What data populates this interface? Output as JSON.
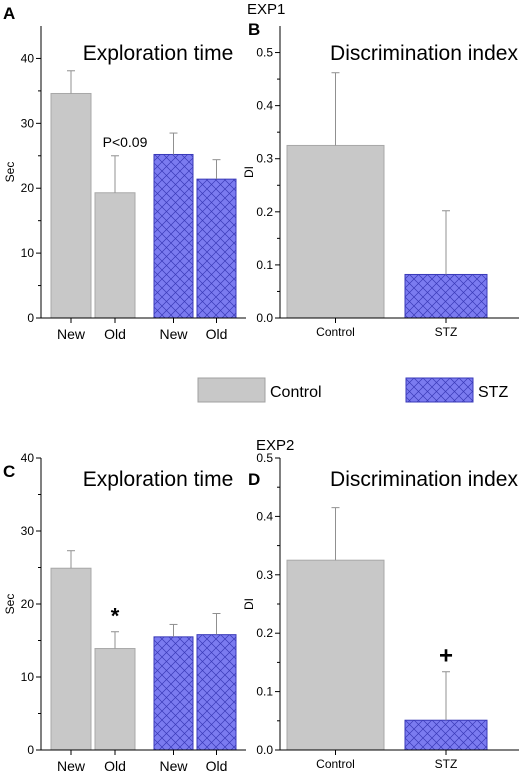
{
  "figure": {
    "exp1_label": "EXP1",
    "exp2_label": "EXP2",
    "legend": [
      {
        "label": "Control",
        "style": "solid"
      },
      {
        "label": "STZ",
        "style": "crosshatch"
      }
    ]
  },
  "colors": {
    "control": "#c8c8c8",
    "stz": "#7b7bf0",
    "hatch": "#3a3ab8",
    "error_bar": "#909090",
    "axis": "#000000"
  },
  "chart_data": [
    {
      "id": "A",
      "panel_letter": "A",
      "type": "bar",
      "title": "Exploration time",
      "ylabel": "Sec",
      "xlabel": "",
      "ylim": [
        0,
        45
      ],
      "yticks": [
        0,
        10,
        20,
        30,
        40
      ],
      "legend": "none",
      "grid": false,
      "categories": [
        "New",
        "Old",
        "New",
        "Old"
      ],
      "values": [
        34.6,
        19.3,
        25.2,
        21.4
      ],
      "errors": [
        3.5,
        5.7,
        3.3,
        3.0
      ],
      "groups": [
        "control",
        "control",
        "stz",
        "stz"
      ],
      "annotations": [
        {
          "index": 1,
          "text": "P<0.09"
        }
      ]
    },
    {
      "id": "B",
      "panel_letter": "B",
      "type": "bar",
      "title": "Discrimination index",
      "ylabel": "DI",
      "xlabel": "",
      "ylim": [
        0,
        0.55
      ],
      "yticks": [
        0.0,
        0.1,
        0.2,
        0.3,
        0.4,
        0.5
      ],
      "legend": "none",
      "grid": false,
      "categories": [
        "Control",
        "STZ"
      ],
      "values": [
        0.325,
        0.082
      ],
      "errors": [
        0.137,
        0.12
      ],
      "groups": [
        "control",
        "stz"
      ],
      "annotations": []
    },
    {
      "id": "C",
      "panel_letter": "C",
      "type": "bar",
      "title": "Exploration time",
      "ylabel": "Sec",
      "xlabel": "",
      "ylim": [
        0,
        40
      ],
      "yticks": [
        0,
        10,
        20,
        30,
        40
      ],
      "legend": "none",
      "grid": false,
      "categories": [
        "New",
        "Old",
        "New",
        "Old"
      ],
      "values": [
        24.9,
        13.9,
        15.5,
        15.8
      ],
      "errors": [
        2.4,
        2.3,
        1.7,
        2.9
      ],
      "groups": [
        "control",
        "control",
        "stz",
        "stz"
      ],
      "annotations": [
        {
          "index": 1,
          "text": "*"
        }
      ]
    },
    {
      "id": "D",
      "panel_letter": "D",
      "type": "bar",
      "title": "Discrimination index",
      "ylabel": "DI",
      "xlabel": "",
      "ylim": [
        0,
        0.5
      ],
      "yticks": [
        0.0,
        0.1,
        0.2,
        0.3,
        0.4,
        0.5
      ],
      "legend": "none",
      "grid": false,
      "categories": [
        "Control",
        "STZ"
      ],
      "values": [
        0.325,
        0.051
      ],
      "errors": [
        0.09,
        0.083
      ],
      "groups": [
        "control",
        "stz"
      ],
      "annotations": [
        {
          "index": 1,
          "text": "+"
        }
      ]
    }
  ]
}
